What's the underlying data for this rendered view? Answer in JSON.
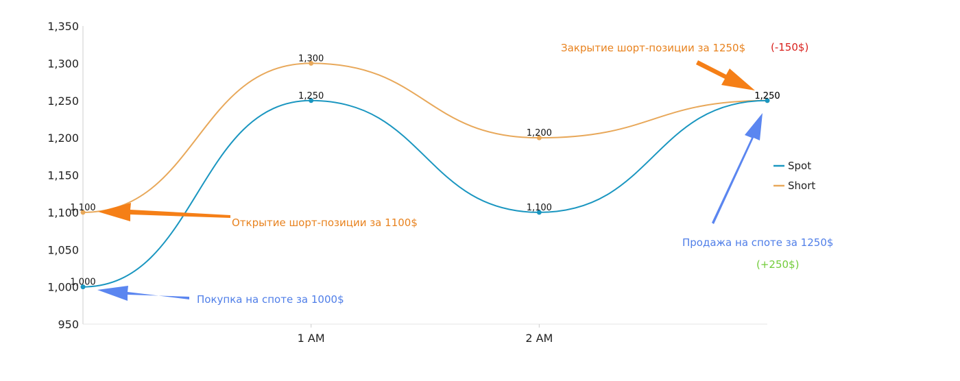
{
  "chart_data": {
    "type": "line",
    "categories": [
      "",
      "1 AM",
      "2 AM",
      ""
    ],
    "ylim": [
      950,
      1350
    ],
    "yticks": [
      "950",
      "1,000",
      "1,050",
      "1,100",
      "1,150",
      "1,200",
      "1,250",
      "1,300",
      "1,350"
    ],
    "ytick_values": [
      950,
      1000,
      1050,
      1100,
      1150,
      1200,
      1250,
      1300,
      1350
    ],
    "series": [
      {
        "name": "Spot",
        "color": "#1a96c0",
        "values": [
          1000,
          1250,
          1100,
          1250
        ],
        "labels": [
          "1,000",
          "1,250",
          "1,100",
          "1,250"
        ]
      },
      {
        "name": "Short",
        "color": "#e8a85a",
        "values": [
          1100,
          1300,
          1200,
          1250
        ],
        "labels": [
          "1,100",
          "1,300",
          "1,200",
          "1,250"
        ]
      }
    ],
    "legend_position": "right",
    "grid": false
  },
  "annotations": {
    "short_close": {
      "text": "Закрытие шорт-позиции за 1250$",
      "pnl": "(-150$)"
    },
    "short_open": {
      "text": "Открытие шорт-позиции за 1100$"
    },
    "spot_buy": {
      "text": "Покупка на споте за 1000$"
    },
    "spot_sell": {
      "text": "Продажа на споте за 1250$",
      "pnl": "(+250$)"
    }
  },
  "colors": {
    "orange_text": "#e8821e",
    "orange_arrow": "#f57f17",
    "blue_text": "#4f7ee8",
    "blue_arrow": "#5b86f0",
    "red_text": "#d9201c",
    "green_text": "#72cc3a",
    "axis": "#cccccc"
  }
}
